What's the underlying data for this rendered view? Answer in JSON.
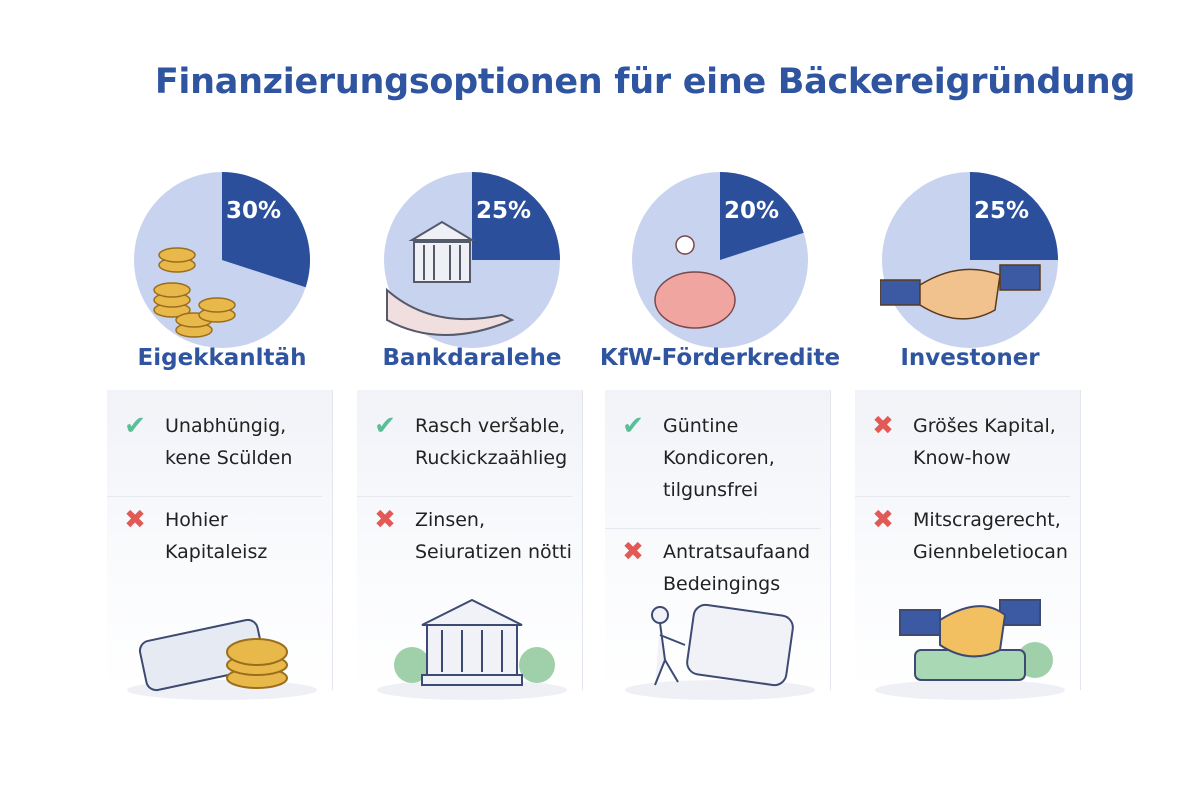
{
  "title": "Finanzierungsoptionen für eine Bäckereigründung",
  "colors": {
    "title": "#2f54a0",
    "pie_share": "#2c4f9c",
    "pie_rest": "#c7d3ef",
    "pro": "#5bbf96",
    "con": "#e25a55"
  },
  "options": [
    {
      "name": "Eigekkanltäh",
      "percent": 30,
      "percent_label": "30%",
      "icon": "coins-icon",
      "items": [
        {
          "type": "pro",
          "text": "Unabhüngig,\nkene Scülden"
        },
        {
          "type": "con",
          "text": "Hohier\nKapitaleisz"
        }
      ],
      "illustration": "cash-and-coin-icon"
    },
    {
      "name": "Bankdaralehe",
      "percent": 25,
      "percent_label": "25%",
      "icon": "bank-icon",
      "items": [
        {
          "type": "pro",
          "text": "Rasch veršable,\nRuckickzaählieg"
        },
        {
          "type": "con",
          "text": "Zinsen,\nSeiuratizen nötti"
        }
      ],
      "illustration": "bank-building-icon"
    },
    {
      "name": "KfW-Förderkredite",
      "percent": 20,
      "percent_label": "20%",
      "icon": "piggy-bank-icon",
      "items": [
        {
          "type": "pro",
          "text": "Güntine\nKondicoren,\ntilgunsfrei"
        },
        {
          "type": "con",
          "text": "Antratsaufaand\nBedeingings"
        }
      ],
      "illustration": "paperwork-icon"
    },
    {
      "name": "Investoner",
      "percent": 25,
      "percent_label": "25%",
      "icon": "handshake-icon",
      "items": [
        {
          "type": "con",
          "text": "Gröšes Kapital,\nKnow-how"
        },
        {
          "type": "con",
          "text": "Mitscragerecht,\nGiennbeletiocan"
        }
      ],
      "illustration": "handshake-money-icon"
    }
  ]
}
